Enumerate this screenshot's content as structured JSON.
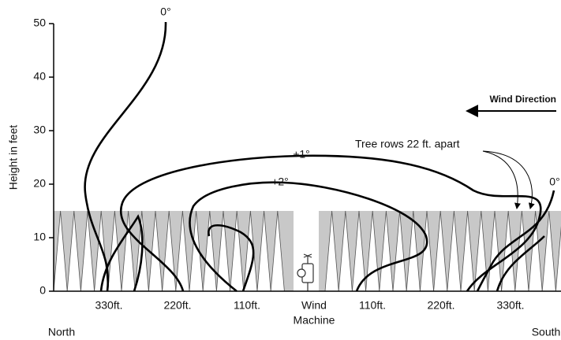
{
  "y_axis": {
    "label": "Height in feet",
    "ylim": [
      0,
      50
    ],
    "ticks": [
      0,
      10,
      20,
      30,
      40,
      50
    ]
  },
  "x_labels": [
    "330ft.",
    "220ft.",
    "110ft.",
    "110ft.",
    "220ft.",
    "330ft."
  ],
  "wind_machine": [
    "Wind",
    "Machine"
  ],
  "compass": {
    "left": "North",
    "right": "South"
  },
  "curve_labels": [
    "0°",
    "+1°",
    "+2°",
    "0°"
  ],
  "annotations": {
    "wind": "Wind Direction",
    "trees": "Tree rows 22 ft. apart"
  }
}
